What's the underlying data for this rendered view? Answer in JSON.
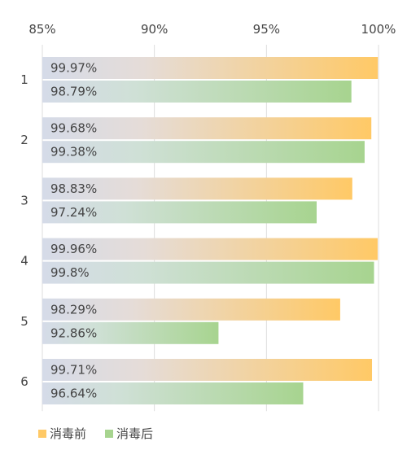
{
  "chart_data": {
    "type": "bar",
    "orientation": "horizontal",
    "categories": [
      "1",
      "2",
      "3",
      "4",
      "5",
      "6"
    ],
    "series": [
      {
        "name": "消毒前",
        "color": "#ffc966",
        "values": [
          99.97,
          99.68,
          98.83,
          99.96,
          98.29,
          99.71
        ],
        "labels": [
          "99.97%",
          "99.68%",
          "98.83%",
          "99.96%",
          "98.29%",
          "99.71%"
        ]
      },
      {
        "name": "消毒后",
        "color": "#a7d48f",
        "values": [
          98.79,
          99.38,
          97.24,
          99.8,
          92.86,
          96.64
        ],
        "labels": [
          "98.79%",
          "99.38%",
          "97.24%",
          "99.8%",
          "92.86%",
          "96.64%"
        ]
      }
    ],
    "xlim": [
      85,
      100
    ],
    "xticks": [
      85,
      90,
      95,
      100
    ],
    "xtick_labels": [
      "85%",
      "90%",
      "95%",
      "100%"
    ],
    "axis_position": "top",
    "grid": true,
    "legend_position": "bottom-left",
    "highlight_color": "#c00000",
    "highlights": [
      {
        "series": 1,
        "index": 4
      }
    ]
  }
}
